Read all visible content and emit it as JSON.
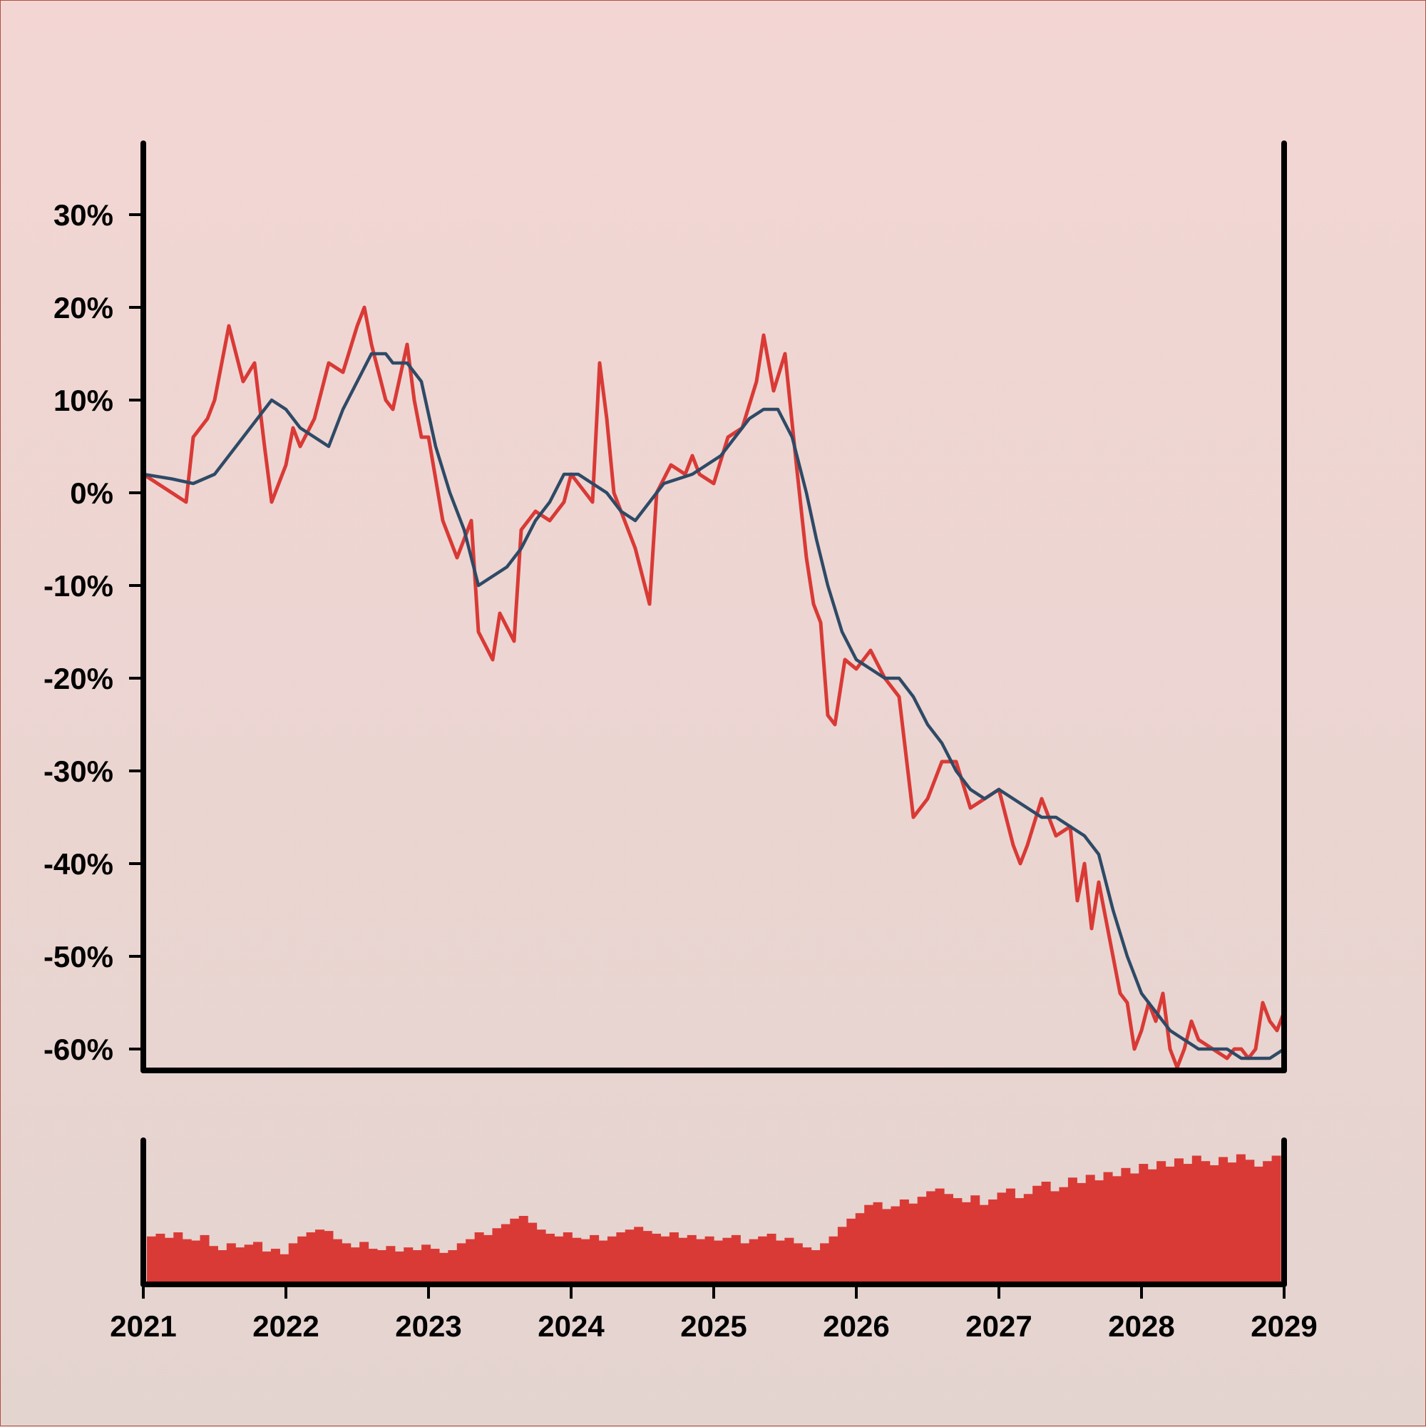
{
  "chart_data": {
    "type": "line",
    "title": "",
    "xlabel": "",
    "ylabel": "",
    "xlim": [
      2021,
      2029
    ],
    "ylim": [
      -62,
      38
    ],
    "x_ticks": [
      "2021",
      "2022",
      "2023",
      "2024",
      "2025",
      "2026",
      "2027",
      "2028",
      "2029"
    ],
    "y_ticks": [
      "30%",
      "20%",
      "10%",
      "0%",
      "-10%",
      "-20%",
      "-30%",
      "-40%",
      "-50%",
      "-60%"
    ],
    "y_tick_values": [
      30,
      20,
      10,
      0,
      -10,
      -20,
      -30,
      -40,
      -50,
      -60
    ],
    "grid": false,
    "legend": "none",
    "colors": {
      "price": "#d93a36",
      "average": "#2e4a66",
      "volume": "#d93a36",
      "axis": "#000000"
    },
    "series": [
      {
        "role": "price",
        "x": [
          2021.0,
          2021.1,
          2021.2,
          2021.3,
          2021.35,
          2021.45,
          2021.5,
          2021.6,
          2021.7,
          2021.78,
          2021.85,
          2021.9,
          2022.0,
          2022.05,
          2022.1,
          2022.2,
          2022.3,
          2022.4,
          2022.5,
          2022.55,
          2022.6,
          2022.7,
          2022.75,
          2022.85,
          2022.9,
          2022.95,
          2023.0,
          2023.1,
          2023.2,
          2023.3,
          2023.35,
          2023.45,
          2023.5,
          2023.6,
          2023.65,
          2023.75,
          2023.85,
          2023.95,
          2024.0,
          2024.1,
          2024.15,
          2024.2,
          2024.25,
          2024.3,
          2024.4,
          2024.45,
          2024.5,
          2024.55,
          2024.6,
          2024.7,
          2024.8,
          2024.85,
          2024.9,
          2025.0,
          2025.1,
          2025.2,
          2025.3,
          2025.35,
          2025.42,
          2025.5,
          2025.58,
          2025.65,
          2025.7,
          2025.75,
          2025.8,
          2025.85,
          2025.92,
          2026.0,
          2026.1,
          2026.2,
          2026.3,
          2026.4,
          2026.5,
          2026.6,
          2026.7,
          2026.8,
          2026.9,
          2027.0,
          2027.1,
          2027.15,
          2027.2,
          2027.3,
          2027.4,
          2027.5,
          2027.55,
          2027.6,
          2027.65,
          2027.7,
          2027.8,
          2027.85,
          2027.9,
          2027.95,
          2028.0,
          2028.05,
          2028.1,
          2028.15,
          2028.2,
          2028.25,
          2028.3,
          2028.35,
          2028.4,
          2028.5,
          2028.6,
          2028.65,
          2028.7,
          2028.75,
          2028.8,
          2028.85,
          2028.9,
          2028.95,
          2029.0
        ],
        "y": [
          2,
          1,
          0,
          -1,
          6,
          8,
          10,
          18,
          12,
          14,
          5,
          -1,
          3,
          7,
          5,
          8,
          14,
          13,
          18,
          20,
          16,
          10,
          9,
          16,
          10,
          6,
          6,
          -3,
          -7,
          -3,
          -15,
          -18,
          -13,
          -16,
          -4,
          -2,
          -3,
          -1,
          2,
          0,
          -1,
          14,
          8,
          0,
          -4,
          -6,
          -9,
          -12,
          0,
          3,
          2,
          4,
          2,
          1,
          6,
          7,
          12,
          17,
          11,
          15,
          3,
          -7,
          -12,
          -14,
          -24,
          -25,
          -18,
          -19,
          -17,
          -20,
          -22,
          -35,
          -33,
          -29,
          -29,
          -34,
          -33,
          -32,
          -38,
          -40,
          -38,
          -33,
          -37,
          -36,
          -44,
          -40,
          -47,
          -42,
          -50,
          -54,
          -55,
          -60,
          -58,
          -55,
          -57,
          -54,
          -60,
          -62,
          -60,
          -57,
          -59,
          -60,
          -61,
          -60,
          -60,
          -61,
          -60,
          -55,
          -57,
          -58,
          -56
        ]
      },
      {
        "role": "average",
        "x": [
          2021.0,
          2021.2,
          2021.35,
          2021.5,
          2021.65,
          2021.8,
          2021.9,
          2022.0,
          2022.1,
          2022.2,
          2022.3,
          2022.4,
          2022.5,
          2022.6,
          2022.7,
          2022.75,
          2022.85,
          2022.95,
          2023.05,
          2023.15,
          2023.25,
          2023.35,
          2023.45,
          2023.55,
          2023.65,
          2023.75,
          2023.85,
          2023.95,
          2024.05,
          2024.15,
          2024.25,
          2024.35,
          2024.45,
          2024.55,
          2024.65,
          2024.75,
          2024.85,
          2024.95,
          2025.05,
          2025.15,
          2025.25,
          2025.35,
          2025.45,
          2025.55,
          2025.65,
          2025.72,
          2025.8,
          2025.9,
          2026.0,
          2026.1,
          2026.2,
          2026.3,
          2026.4,
          2026.5,
          2026.6,
          2026.7,
          2026.8,
          2026.9,
          2027.0,
          2027.1,
          2027.2,
          2027.3,
          2027.4,
          2027.5,
          2027.6,
          2027.7,
          2027.8,
          2027.9,
          2028.0,
          2028.1,
          2028.2,
          2028.3,
          2028.4,
          2028.5,
          2028.6,
          2028.7,
          2028.8,
          2028.9,
          2029.0
        ],
        "y": [
          2,
          1.5,
          1,
          2,
          5,
          8,
          10,
          9,
          7,
          6,
          5,
          9,
          12,
          15,
          15,
          14,
          14,
          12,
          5,
          0,
          -4,
          -10,
          -9,
          -8,
          -6,
          -3,
          -1,
          2,
          2,
          1,
          0,
          -2,
          -3,
          -1,
          1,
          1.5,
          2,
          3,
          4,
          6,
          8,
          9,
          9,
          6,
          0,
          -5,
          -10,
          -15,
          -18,
          -19,
          -20,
          -20,
          -22,
          -25,
          -27,
          -30,
          -32,
          -33,
          -32,
          -33,
          -34,
          -35,
          -35,
          -36,
          -37,
          -39,
          -45,
          -50,
          -54,
          -56,
          -58,
          -59,
          -60,
          -60,
          -60,
          -61,
          -61,
          -61,
          -60
        ]
      }
    ],
    "volume": {
      "x_range": [
        2021,
        2029
      ],
      "values": [
        0.35,
        0.37,
        0.34,
        0.38,
        0.33,
        0.32,
        0.36,
        0.28,
        0.25,
        0.3,
        0.27,
        0.29,
        0.31,
        0.24,
        0.26,
        0.22,
        0.3,
        0.35,
        0.38,
        0.4,
        0.39,
        0.33,
        0.3,
        0.27,
        0.31,
        0.26,
        0.25,
        0.28,
        0.24,
        0.27,
        0.25,
        0.29,
        0.26,
        0.23,
        0.25,
        0.3,
        0.33,
        0.38,
        0.36,
        0.41,
        0.44,
        0.48,
        0.5,
        0.45,
        0.4,
        0.37,
        0.35,
        0.38,
        0.34,
        0.33,
        0.36,
        0.32,
        0.35,
        0.38,
        0.4,
        0.42,
        0.39,
        0.37,
        0.35,
        0.38,
        0.34,
        0.36,
        0.33,
        0.35,
        0.32,
        0.34,
        0.36,
        0.3,
        0.33,
        0.35,
        0.37,
        0.32,
        0.34,
        0.3,
        0.27,
        0.25,
        0.3,
        0.35,
        0.42,
        0.48,
        0.52,
        0.58,
        0.6,
        0.55,
        0.57,
        0.62,
        0.59,
        0.64,
        0.68,
        0.7,
        0.66,
        0.63,
        0.6,
        0.65,
        0.58,
        0.62,
        0.67,
        0.7,
        0.63,
        0.66,
        0.72,
        0.75,
        0.68,
        0.71,
        0.78,
        0.74,
        0.8,
        0.76,
        0.82,
        0.79,
        0.85,
        0.81,
        0.88,
        0.84,
        0.9,
        0.86,
        0.92,
        0.88,
        0.94,
        0.9,
        0.87,
        0.93,
        0.89,
        0.95,
        0.91,
        0.86,
        0.9,
        0.94
      ]
    }
  }
}
